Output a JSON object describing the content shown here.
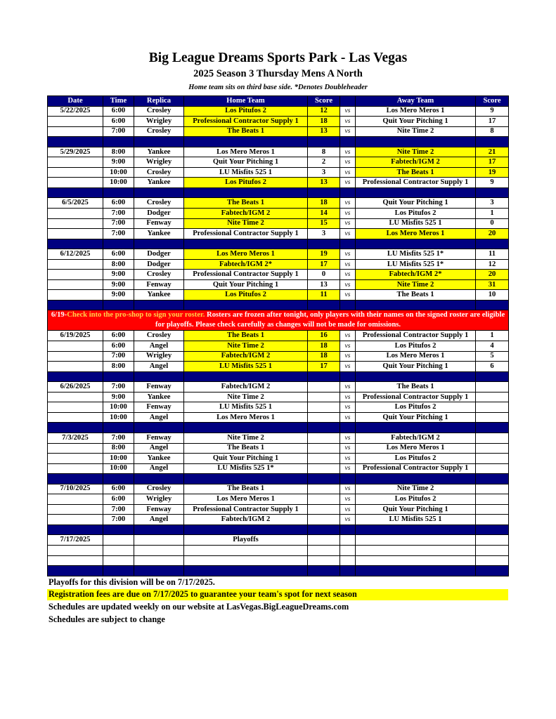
{
  "header": {
    "title": "Big League Dreams Sports Park - Las Vegas",
    "subtitle": "2025 Season 3 Thursday Mens A North",
    "note": "Home team sits on third base side.  *Denotes Doubleheader"
  },
  "columns": [
    "Date",
    "Time",
    "Replica",
    "Home Team",
    "Score",
    "",
    "Away Team",
    "Score"
  ],
  "colors": {
    "header_bg": "#000080",
    "highlight": "#ffff00",
    "notice_bg": "#ff0000"
  },
  "notice": {
    "prefix": "6/19-",
    "highlight": "Check into the pro-shop to sign your roster.",
    "text": " Rosters are frozen after tonight, only players with their names on the signed roster are eligible for playoffs. Please check carefully as changes will not be made for omissions."
  },
  "groups": [
    {
      "date": "5/22/2025",
      "games": [
        {
          "time": "6:00",
          "field": "Crosley",
          "home": "Los Pitufos 2",
          "hs": "12",
          "vs": "vs",
          "away": "Los Mero Meros 1",
          "as": "9",
          "win": "home"
        },
        {
          "time": "6:00",
          "field": "Wrigley",
          "home": "Professional Contractor Supply 1",
          "hs": "18",
          "vs": "vs",
          "away": "Quit Your Pitching 1",
          "as": "17",
          "win": "home"
        },
        {
          "time": "7:00",
          "field": "Crosley",
          "home": "The Beats 1",
          "hs": "13",
          "vs": "vs",
          "away": "Nite Time 2",
          "as": "8",
          "win": "home"
        }
      ]
    },
    {
      "date": "5/29/2025",
      "games": [
        {
          "time": "8:00",
          "field": "Yankee",
          "home": "Los Mero Meros 1",
          "hs": "8",
          "vs": "vs",
          "away": "Nite Time 2",
          "as": "21",
          "win": "away"
        },
        {
          "time": "9:00",
          "field": "Wrigley",
          "home": "Quit Your Pitching 1",
          "hs": "2",
          "vs": "vs",
          "away": "Fabtech/IGM 2",
          "as": "17",
          "win": "away"
        },
        {
          "time": "10:00",
          "field": "Crosley",
          "home": "LU Misfits 525 1",
          "hs": "3",
          "vs": "vs",
          "away": "The Beats 1",
          "as": "19",
          "win": "away"
        },
        {
          "time": "10:00",
          "field": "Yankee",
          "home": "Los Pitufos 2",
          "hs": "13",
          "vs": "vs",
          "away": "Professional Contractor Supply 1",
          "as": "9",
          "win": "home"
        }
      ]
    },
    {
      "date": "6/5/2025",
      "games": [
        {
          "time": "6:00",
          "field": "Crosley",
          "home": "The Beats 1",
          "hs": "18",
          "vs": "vs",
          "away": "Quit Your Pitching 1",
          "as": "3",
          "win": "home"
        },
        {
          "time": "7:00",
          "field": "Dodger",
          "home": "Fabtech/IGM 2",
          "hs": "14",
          "vs": "vs",
          "away": "Los Pitufos 2",
          "as": "1",
          "win": "home"
        },
        {
          "time": "7:00",
          "field": "Fenway",
          "home": "Nite Time 2",
          "hs": "15",
          "vs": "vs",
          "away": "LU Misfits 525 1",
          "as": "0",
          "win": "home"
        },
        {
          "time": "7:00",
          "field": "Yankee",
          "home": "Professional Contractor Supply 1",
          "hs": "3",
          "vs": "vs",
          "away": "Los Mero Meros 1",
          "as": "20",
          "win": "away"
        }
      ]
    },
    {
      "date": "6/12/2025",
      "games": [
        {
          "time": "6:00",
          "field": "Dodger",
          "home": "Los Mero Meros 1",
          "hs": "19",
          "vs": "vs",
          "away": "LU Misfits 525 1*",
          "as": "11",
          "win": "home"
        },
        {
          "time": "8:00",
          "field": "Dodger",
          "home": "Fabtech/IGM 2*",
          "hs": "17",
          "vs": "vs",
          "away": "LU Misfits 525 1*",
          "as": "12",
          "win": "home"
        },
        {
          "time": "9:00",
          "field": "Crosley",
          "home": "Professional Contractor Supply 1",
          "hs": "0",
          "vs": "vs",
          "away": "Fabtech/IGM 2*",
          "as": "20",
          "win": "away"
        },
        {
          "time": "9:00",
          "field": "Fenway",
          "home": "Quit Your Pitching 1",
          "hs": "13",
          "vs": "vs",
          "away": "Nite Time 2",
          "as": "31",
          "win": "away"
        },
        {
          "time": "9:00",
          "field": "Yankee",
          "home": "Los Pitufos 2",
          "hs": "11",
          "vs": "vs",
          "away": "The Beats 1",
          "as": "10",
          "win": "home"
        }
      ],
      "notice_after": true
    },
    {
      "date": "6/19/2025",
      "games": [
        {
          "time": "6:00",
          "field": "Crosley",
          "home": "The Beats 1",
          "hs": "16",
          "vs": "vs",
          "away": "Professional Contractor Supply 1",
          "as": "1",
          "win": "home"
        },
        {
          "time": "6:00",
          "field": "Angel",
          "home": "Nite Time 2",
          "hs": "18",
          "vs": "vs",
          "away": "Los Pitufos 2",
          "as": "4",
          "win": "home"
        },
        {
          "time": "7:00",
          "field": "Wrigley",
          "home": "Fabtech/IGM 2",
          "hs": "18",
          "vs": "vs",
          "away": "Los Mero Meros 1",
          "as": "5",
          "win": "home"
        },
        {
          "time": "8:00",
          "field": "Angel",
          "home": "LU Misfits 525 1",
          "hs": "17",
          "vs": "vs",
          "away": "Quit Your Pitching 1",
          "as": "6",
          "win": "home"
        }
      ]
    },
    {
      "date": "6/26/2025",
      "games": [
        {
          "time": "7:00",
          "field": "Fenway",
          "home": "Fabtech/IGM 2",
          "hs": "",
          "vs": "vs",
          "away": "The Beats 1",
          "as": ""
        },
        {
          "time": "9:00",
          "field": "Yankee",
          "home": "Nite Time 2",
          "hs": "",
          "vs": "vs",
          "away": "Professional Contractor Supply 1",
          "as": ""
        },
        {
          "time": "10:00",
          "field": "Fenway",
          "home": "LU Misfits 525 1",
          "hs": "",
          "vs": "vs",
          "away": "Los Pitufos 2",
          "as": ""
        },
        {
          "time": "10:00",
          "field": "Angel",
          "home": "Los Mero Meros 1",
          "hs": "",
          "vs": "vs",
          "away": "Quit Your Pitching 1",
          "as": ""
        }
      ]
    },
    {
      "date": "7/3/2025",
      "games": [
        {
          "time": "7:00",
          "field": "Fenway",
          "home": "Nite Time 2",
          "hs": "",
          "vs": "vs",
          "away": "Fabtech/IGM 2",
          "as": ""
        },
        {
          "time": "8:00",
          "field": "Angel",
          "home": "The Beats 1",
          "hs": "",
          "vs": "vs",
          "away": "Los Mero Meros 1",
          "as": ""
        },
        {
          "time": "10:00",
          "field": "Yankee",
          "home": "Quit Your Pitching 1",
          "hs": "",
          "vs": "vs",
          "away": "Los Pitufos 2",
          "as": ""
        },
        {
          "time": "10:00",
          "field": "Angel",
          "home": "LU Misfits 525 1*",
          "hs": "",
          "vs": "vs",
          "away": "Professional Contractor Supply 1",
          "as": ""
        }
      ]
    },
    {
      "date": "7/10/2025",
      "games": [
        {
          "time": "6:00",
          "field": "Crosley",
          "home": "The Beats 1",
          "hs": "",
          "vs": "vs",
          "away": "Nite Time 2",
          "as": ""
        },
        {
          "time": "6:00",
          "field": "Wrigley",
          "home": "Los Mero Meros 1",
          "hs": "",
          "vs": "vs",
          "away": "Los Pitufos 2",
          "as": ""
        },
        {
          "time": "7:00",
          "field": "Fenway",
          "home": "Professional Contractor Supply 1",
          "hs": "",
          "vs": "vs",
          "away": "Quit Your Pitching 1",
          "as": ""
        },
        {
          "time": "7:00",
          "field": "Angel",
          "home": "Fabtech/IGM 2",
          "hs": "",
          "vs": "vs",
          "away": "LU Misfits 525 1",
          "as": ""
        }
      ]
    },
    {
      "date": "7/17/2025",
      "games": [
        {
          "time": "",
          "field": "",
          "home": "Playoffs",
          "hs": "",
          "vs": "",
          "away": "",
          "as": ""
        },
        {
          "time": "",
          "field": "",
          "home": "",
          "hs": "",
          "vs": "",
          "away": "",
          "as": ""
        },
        {
          "time": "",
          "field": "",
          "home": "",
          "hs": "",
          "vs": "",
          "away": "",
          "as": ""
        }
      ]
    }
  ],
  "footer": [
    "Playoffs for this division will be on 7/17/2025.",
    "Registration fees are due on 7/17/2025 to guarantee your team's spot for next season",
    "Schedules are updated weekly on our website at LasVegas.BigLeagueDreams.com",
    "Schedules are subject to change"
  ]
}
